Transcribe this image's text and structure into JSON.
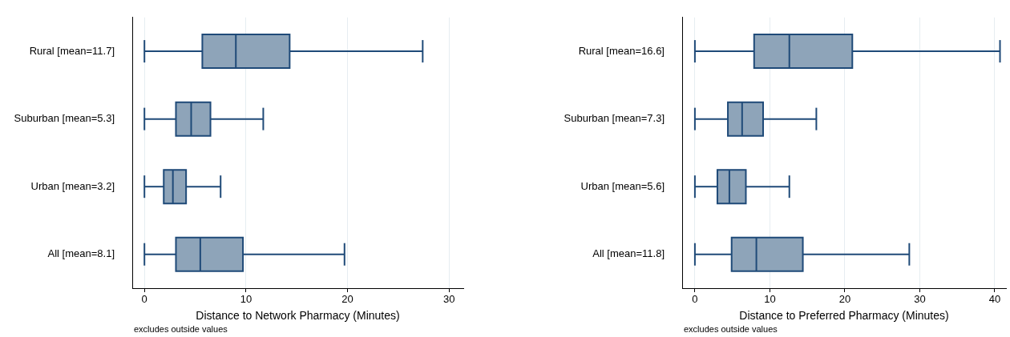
{
  "chart_data": [
    {
      "type": "box",
      "orientation": "horizontal",
      "categories": [
        "Rural [mean=11.7]",
        "Suburban [mean=5.3]",
        "Urban [mean=3.2]",
        "All [mean=8.1]"
      ],
      "color": "#8ea4b9",
      "boxes": [
        {
          "low": 0,
          "q1": 5.7,
          "median": 9.0,
          "q3": 14.3,
          "high": 27.4
        },
        {
          "low": 0,
          "q1": 3.1,
          "median": 4.6,
          "q3": 6.5,
          "high": 11.7
        },
        {
          "low": 0,
          "q1": 1.9,
          "median": 2.8,
          "q3": 4.1,
          "high": 7.5
        },
        {
          "low": 0,
          "q1": 3.1,
          "median": 5.5,
          "q3": 9.7,
          "high": 19.7
        }
      ],
      "xlim": [
        -1.2,
        31.4
      ],
      "xticks": [
        0,
        10,
        20,
        30
      ],
      "xlabel": "Distance to Network Pharmacy (Minutes)",
      "grid": "x",
      "annotations": [
        "excludes outside values"
      ]
    },
    {
      "type": "box",
      "orientation": "horizontal",
      "categories": [
        "Rural [mean=16.6]",
        "Suburban [mean=7.3]",
        "Urban [mean=5.6]",
        "All [mean=11.8]"
      ],
      "color": "#8ea4b9",
      "boxes": [
        {
          "low": 0,
          "q1": 7.9,
          "median": 12.6,
          "q3": 21.0,
          "high": 40.7
        },
        {
          "low": 0,
          "q1": 4.4,
          "median": 6.3,
          "q3": 9.1,
          "high": 16.2
        },
        {
          "low": 0,
          "q1": 3.0,
          "median": 4.6,
          "q3": 6.8,
          "high": 12.6
        },
        {
          "low": 0,
          "q1": 4.9,
          "median": 8.2,
          "q3": 14.4,
          "high": 28.6
        }
      ],
      "xlim": [
        -1.7,
        41.5
      ],
      "xticks": [
        0,
        10,
        20,
        30,
        40
      ],
      "xlabel": "Distance to Preferred Pharmacy (Minutes)",
      "grid": "x",
      "annotations": [
        "excludes outside values"
      ]
    }
  ]
}
